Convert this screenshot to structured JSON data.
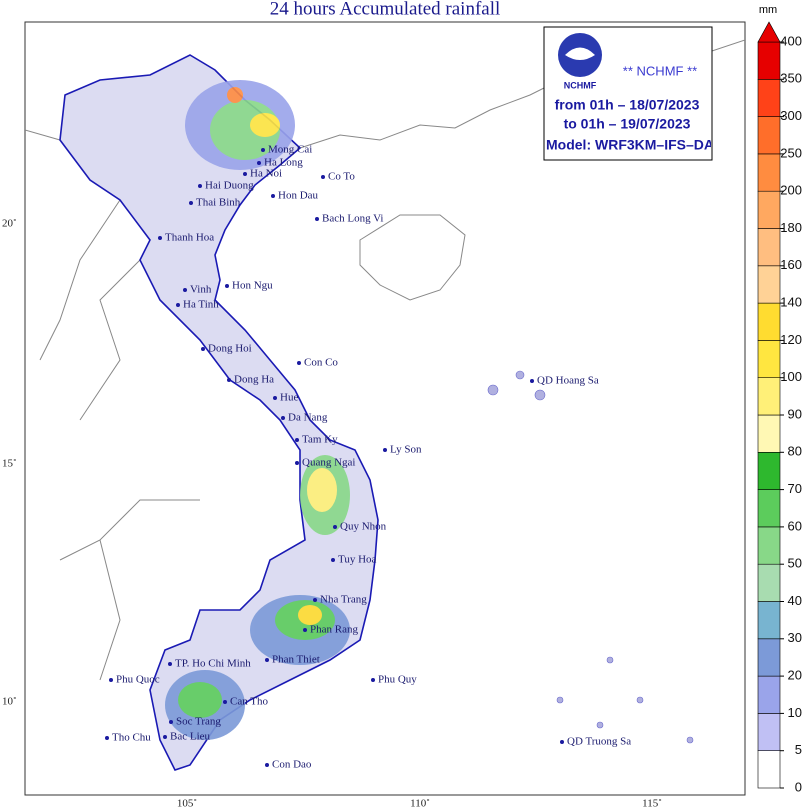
{
  "title": "24 hours Accumulated rainfall",
  "cities": [
    "Mong Cai",
    "Ha Long",
    "Ha Noi",
    "Hai Duong",
    "Thai Binh",
    "Hon Dau",
    "Co To",
    "Bach Long Vi",
    "Thanh Hoa",
    "Hon Ngu",
    "Vinh",
    "Ha Tinh",
    "Dong Hoi",
    "Con Co",
    "Dong Ha",
    "Hue",
    "Da Nang",
    "Tam Ky",
    "Ly Son",
    "Quang Ngai",
    "Quy Nhon",
    "Tuy Hoa",
    "Nha Trang",
    "Phan Rang",
    "TP. Ho Chi Minh",
    "Phan Thiet",
    "Phu Quy",
    "Phu Quoc",
    "Can Tho",
    "Soc Trang",
    "Bac Lieu",
    "Tho Chu",
    "Con Dao",
    "QD Hoang Sa",
    "QD Truong Sa"
  ],
  "lat_labels": [
    "20˚",
    "15˚",
    "10˚"
  ],
  "lon_labels": [
    "105˚",
    "110˚",
    "115˚"
  ],
  "info": {
    "logo_text": "NCHMF",
    "agency": "** NCHMF **",
    "from": "from 01h – 18/07/2023",
    "to": "to 01h – 19/07/2023",
    "model": "Model: WRF3KM–IFS–DA"
  },
  "legend": {
    "unit": "mm",
    "ticks": [
      0,
      5,
      10,
      20,
      30,
      40,
      50,
      60,
      70,
      80,
      90,
      100,
      120,
      140,
      160,
      180,
      200,
      250,
      300,
      350,
      400
    ],
    "colors": [
      "#ffffff",
      "#c0c0f4",
      "#9aa4ea",
      "#7c9ad8",
      "#78b4d0",
      "#a8dcb0",
      "#88d888",
      "#5ccc5c",
      "#2eb82e",
      "#fff8b4",
      "#fff078",
      "#ffe640",
      "#ffdc30",
      "#ffd296",
      "#ffbe80",
      "#ffa860",
      "#ff8c40",
      "#ff6e2a",
      "#ff4218",
      "#e60000"
    ]
  }
}
